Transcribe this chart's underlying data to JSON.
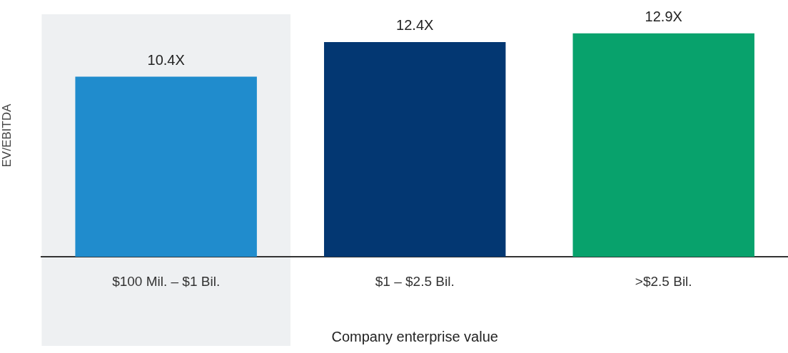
{
  "chart_data": {
    "type": "bar",
    "xlabel": "Company enterprise value",
    "ylabel": "EV/EBITDA",
    "categories": [
      "$100 Mil. – $1 Bil.",
      "$1 – $2.5 Bil.",
      ">$2.5 Bil."
    ],
    "values": [
      10.4,
      12.4,
      12.9
    ],
    "colors": [
      "#208ccd",
      "#033772",
      "#08a26c"
    ],
    "value_labels": [
      "10.4X",
      "12.4X",
      "12.9X"
    ],
    "tick_labels": "x",
    "grid": false,
    "legend": false,
    "bands": [
      {
        "axis": "x",
        "from": "$100 Mil. – $1 Bil.",
        "to": "$100 Mil. – $1 Bil.",
        "color": "#eef0f2"
      }
    ]
  }
}
